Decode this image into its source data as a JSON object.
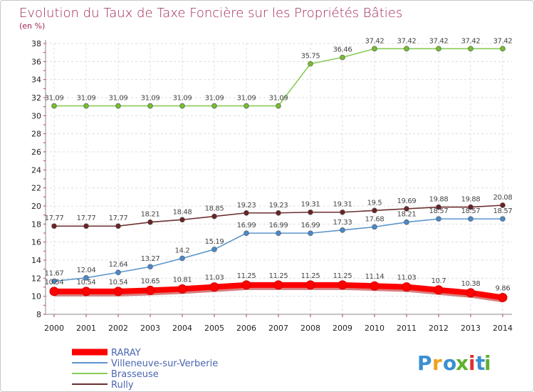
{
  "chart_data": {
    "type": "line",
    "title": "Evolution du Taux de Taxe Foncière sur les Propriétés Bâties",
    "subtitle": "(en %)",
    "xlabel": "",
    "ylabel": "",
    "categories": [
      "2000",
      "2001",
      "2002",
      "2003",
      "2004",
      "2005",
      "2006",
      "2007",
      "2008",
      "2009",
      "2010",
      "2011",
      "2012",
      "2013",
      "2014"
    ],
    "ylim": [
      8,
      38
    ],
    "yticks": [
      8,
      10,
      12,
      14,
      16,
      18,
      20,
      22,
      24,
      26,
      28,
      30,
      32,
      34,
      36,
      38
    ],
    "grid": true,
    "legend_position": "bottom-left",
    "series": [
      {
        "name": "Brasseuse",
        "color": "#88cc55",
        "marker": "#77bb33",
        "values": [
          31.09,
          31.09,
          31.09,
          31.09,
          31.09,
          31.09,
          31.09,
          31.09,
          35.75,
          36.46,
          37.42,
          37.42,
          37.42,
          37.42,
          37.42
        ],
        "labels": [
          "31.09",
          "31.09",
          "31.09",
          "31.09",
          "31.09",
          "31.09",
          "31.09",
          "31.09",
          "35.75",
          "36.46",
          "37.42",
          "37.42",
          "37.42",
          "37.42",
          "37.42"
        ]
      },
      {
        "name": "Rully",
        "color": "#6b2f2f",
        "marker": "#6b2424",
        "values": [
          17.77,
          17.77,
          17.77,
          18.21,
          18.48,
          18.85,
          19.23,
          19.23,
          19.31,
          19.31,
          19.5,
          19.69,
          19.88,
          19.88,
          20.08
        ],
        "labels": [
          "17.77",
          "17.77",
          "17.77",
          "18.21",
          "18.48",
          "18.85",
          "19.23",
          "19.23",
          "19.31",
          "19.31",
          "19.5",
          "19.69",
          "19.88",
          "19.88",
          "20.08"
        ]
      },
      {
        "name": "Villeneuve-sur-Verberie",
        "color": "#5b95cc",
        "marker": "#4a88c8",
        "values": [
          11.67,
          12.04,
          12.64,
          13.27,
          14.2,
          15.19,
          16.99,
          16.99,
          16.99,
          17.33,
          17.68,
          18.21,
          18.57,
          18.57,
          18.57
        ],
        "labels": [
          "11.67",
          "12.04",
          "12.64",
          "13.27",
          "14.2",
          "15.19",
          "16.99",
          "16.99",
          "16.99",
          "17.33",
          "17.68",
          "18.21",
          "18.57",
          "18.57",
          "18.57"
        ]
      },
      {
        "name": "RARAY",
        "color": "#ff0000",
        "marker": "#ff0000",
        "values": [
          10.54,
          10.54,
          10.54,
          10.65,
          10.81,
          11.03,
          11.25,
          11.25,
          11.25,
          11.25,
          11.14,
          11.03,
          10.7,
          10.38,
          9.86
        ],
        "labels": [
          "10.54",
          "10.54",
          "10.54",
          "10.65",
          "10.81",
          "11.03",
          "11.25",
          "11.25",
          "11.25",
          "11.25",
          "11.14",
          "11.03",
          "10.7",
          "10.38",
          "9.86"
        ]
      }
    ],
    "legend": [
      "RARAY",
      "Villeneuve-sur-Verberie",
      "Brasseuse",
      "Rully"
    ]
  },
  "brand": {
    "letters": [
      "P",
      "r",
      "o",
      "x",
      "i",
      "t",
      "i"
    ],
    "colors": [
      "#3a8fd0",
      "#f0a020",
      "#3a8fd0",
      "#60b030",
      "#e03030",
      "#3a8fd0",
      "#60b030"
    ]
  }
}
